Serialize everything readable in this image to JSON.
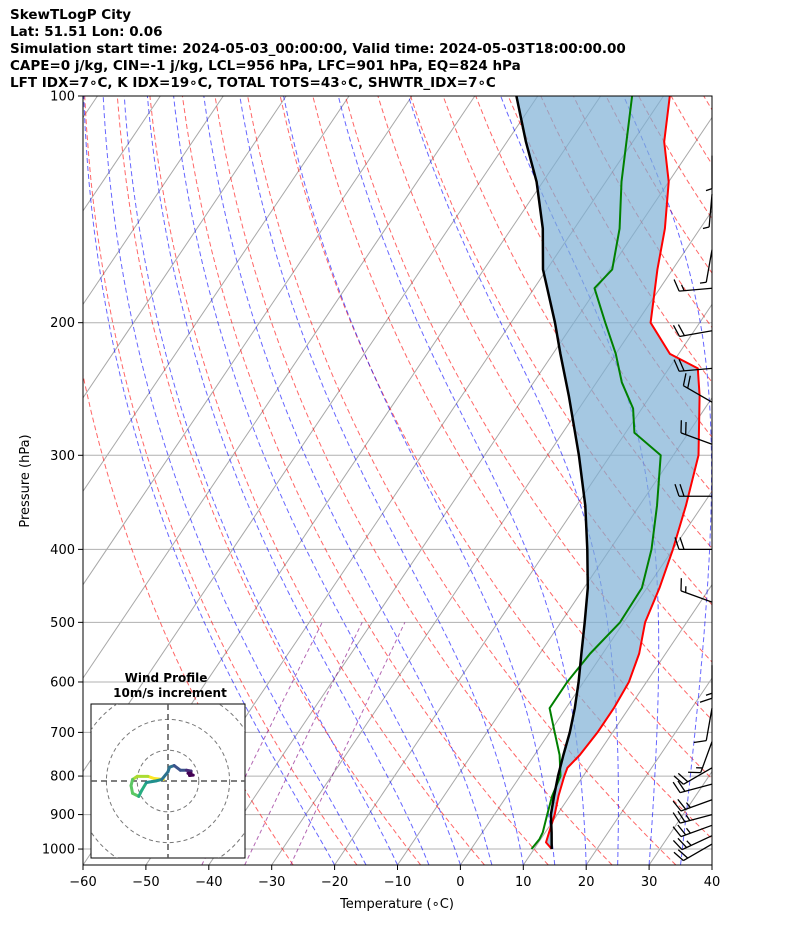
{
  "header": {
    "line1": "SkewTLogP City",
    "line2": "Lat: 51.51   Lon: 0.06",
    "line3": "Simulation start time: 2024-05-03_00:00:00, Valid time: 2024-05-03T18:00:00.00",
    "line4": "CAPE=0 j/kg, CIN=-1 j/kg, LCL=956 hPa, LFC=901 hPa, EQ=824 hPa",
    "line5": "LFT IDX=7∘C, K IDX=19∘C, TOTAL TOTS=43∘C, SHWTR_IDX=7∘C"
  },
  "chart_data": {
    "type": "line",
    "subtype": "skew-T log-P",
    "xlabel": "Temperature (∘C)",
    "ylabel": "Pressure (hPa)",
    "xlim": [
      -60,
      40
    ],
    "ylim": [
      1050,
      100
    ],
    "yscale": "log",
    "grid": true,
    "x_ticks": [
      "−60",
      "−50",
      "−40",
      "−30",
      "−20",
      "−10",
      "0",
      "10",
      "20",
      "30",
      "40"
    ],
    "y_ticks": [
      "100",
      "200",
      "300",
      "400",
      "500",
      "600",
      "700",
      "800",
      "900",
      "1000"
    ],
    "colors": {
      "temperature": "#ff0000",
      "dewpoint": "#008000",
      "parcel": "#000000",
      "cape_fill": "#7fb0d5",
      "dry_adiabat": "#ff0000",
      "moist_adiabat": "#0000ff",
      "mixing_ratio": "#800080",
      "isotherm": "#808080"
    },
    "series": [
      {
        "key": "temperature",
        "points": [
          [
            12.8,
            1000
          ],
          [
            11.2,
            980
          ],
          [
            10.6,
            950
          ],
          [
            9.6,
            900
          ],
          [
            8.2,
            850
          ],
          [
            7.0,
            800
          ],
          [
            6.6,
            780
          ],
          [
            7.2,
            750
          ],
          [
            7.6,
            700
          ],
          [
            7.6,
            650
          ],
          [
            7.2,
            600
          ],
          [
            5.8,
            550
          ],
          [
            3.4,
            500
          ],
          [
            2.0,
            450
          ],
          [
            0.0,
            400
          ],
          [
            -2.6,
            350
          ],
          [
            -6.0,
            300
          ],
          [
            -12.2,
            250
          ],
          [
            -15.4,
            230
          ],
          [
            -21.4,
            220
          ],
          [
            -27.8,
            200
          ],
          [
            -32.4,
            170
          ],
          [
            -35.6,
            150
          ],
          [
            -40.0,
            130
          ],
          [
            -45.0,
            115
          ],
          [
            -49.0,
            100
          ]
        ]
      },
      {
        "key": "dewpoint",
        "points": [
          [
            9.6,
            1000
          ],
          [
            9.8,
            970
          ],
          [
            9.6,
            950
          ],
          [
            8.4,
            900
          ],
          [
            7.2,
            850
          ],
          [
            6.4,
            800
          ],
          [
            4.0,
            750
          ],
          [
            0.8,
            700
          ],
          [
            -2.6,
            650
          ],
          [
            -2.6,
            600
          ],
          [
            -2.0,
            550
          ],
          [
            -0.6,
            500
          ],
          [
            -0.8,
            450
          ],
          [
            -3.4,
            400
          ],
          [
            -7.2,
            350
          ],
          [
            -12.0,
            300
          ],
          [
            -18.6,
            280
          ],
          [
            -21.4,
            260
          ],
          [
            -26.0,
            240
          ],
          [
            -30.0,
            220
          ],
          [
            -35.0,
            200
          ],
          [
            -40.4,
            180
          ],
          [
            -39.6,
            170
          ],
          [
            -42.8,
            150
          ],
          [
            -47.5,
            130
          ],
          [
            -55.0,
            100
          ]
        ]
      },
      {
        "key": "parcel",
        "points": [
          [
            12.8,
            1000
          ],
          [
            11.0,
            950
          ],
          [
            9.0,
            900
          ],
          [
            7.5,
            850
          ],
          [
            6.0,
            800
          ],
          [
            4.6,
            750
          ],
          [
            3.2,
            700
          ],
          [
            1.4,
            650
          ],
          [
            -0.8,
            600
          ],
          [
            -3.4,
            550
          ],
          [
            -6.2,
            500
          ],
          [
            -9.4,
            450
          ],
          [
            -13.6,
            400
          ],
          [
            -18.6,
            350
          ],
          [
            -25.0,
            300
          ],
          [
            -33.0,
            250
          ],
          [
            -38.8,
            220
          ],
          [
            -43.0,
            200
          ],
          [
            -50.6,
            170
          ],
          [
            -55.0,
            150
          ],
          [
            -61.0,
            130
          ],
          [
            -67.0,
            115
          ],
          [
            -73.4,
            100
          ]
        ]
      }
    ],
    "wind_barbs": [
      {
        "p": 985,
        "speed": 20,
        "dir": 240
      },
      {
        "p": 960,
        "speed": 25,
        "dir": 245
      },
      {
        "p": 930,
        "speed": 25,
        "dir": 250
      },
      {
        "p": 900,
        "speed": 25,
        "dir": 255
      },
      {
        "p": 860,
        "speed": 25,
        "dir": 250
      },
      {
        "p": 820,
        "speed": 20,
        "dir": 255
      },
      {
        "p": 780,
        "speed": 20,
        "dir": 240
      },
      {
        "p": 720,
        "speed": 15,
        "dir": 200
      },
      {
        "p": 650,
        "speed": 10,
        "dir": 190
      },
      {
        "p": 570,
        "speed": 15,
        "dir": 180
      },
      {
        "p": 470,
        "speed": 15,
        "dir": 290
      },
      {
        "p": 400,
        "speed": 20,
        "dir": 270
      },
      {
        "p": 340,
        "speed": 20,
        "dir": 270
      },
      {
        "p": 290,
        "speed": 20,
        "dir": 290
      },
      {
        "p": 255,
        "speed": 20,
        "dir": 300
      },
      {
        "p": 230,
        "speed": 20,
        "dir": 265
      },
      {
        "p": 205,
        "speed": 20,
        "dir": 260
      },
      {
        "p": 180,
        "speed": 15,
        "dir": 265
      },
      {
        "p": 160,
        "speed": 5,
        "dir": 190
      },
      {
        "p": 135,
        "speed": 5,
        "dir": 185
      },
      {
        "p": 120,
        "speed": 5,
        "dir": 180
      }
    ],
    "hodograph": {
      "title": "Wind Profile",
      "subtitle": "10m/s increment",
      "rings_ms": [
        10,
        20,
        30
      ],
      "range_ms": 25,
      "points": [
        [
          -1.5,
          0.5
        ],
        [
          -4.5,
          0.8
        ],
        [
          -6.5,
          1.5
        ],
        [
          -10,
          1.5
        ],
        [
          -11.5,
          0.5
        ],
        [
          -12,
          -1.5
        ],
        [
          -11.5,
          -4
        ],
        [
          -9.5,
          -5
        ],
        [
          -8.5,
          -3
        ],
        [
          -7,
          -0.5
        ],
        [
          -4,
          0
        ],
        [
          -2,
          0.5
        ],
        [
          0,
          3
        ],
        [
          0.5,
          4.5
        ],
        [
          2,
          5
        ],
        [
          4,
          3.5
        ],
        [
          6,
          3.5
        ],
        [
          7.5,
          3.2
        ],
        [
          6.5,
          2.5
        ],
        [
          7.5,
          2.5
        ],
        [
          7,
          1.8
        ],
        [
          8.2,
          1.9
        ]
      ]
    }
  }
}
